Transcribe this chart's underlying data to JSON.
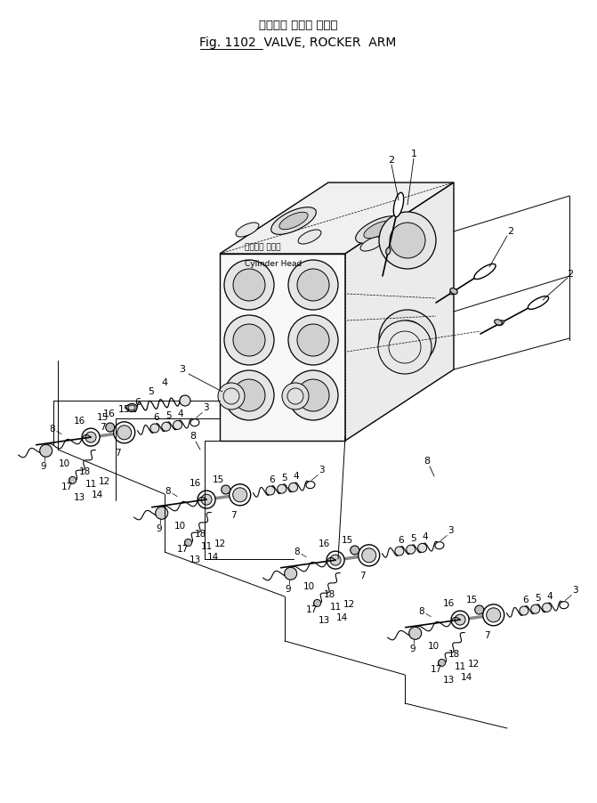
{
  "title_jp": "バルブ， ロッカ アーム",
  "title_en": "Fig. 1102  VALVE, ROCKER  ARM",
  "bg_color": "#ffffff",
  "lc": "#000000",
  "fig_width": 6.71,
  "fig_height": 9.02,
  "dpi": 100
}
